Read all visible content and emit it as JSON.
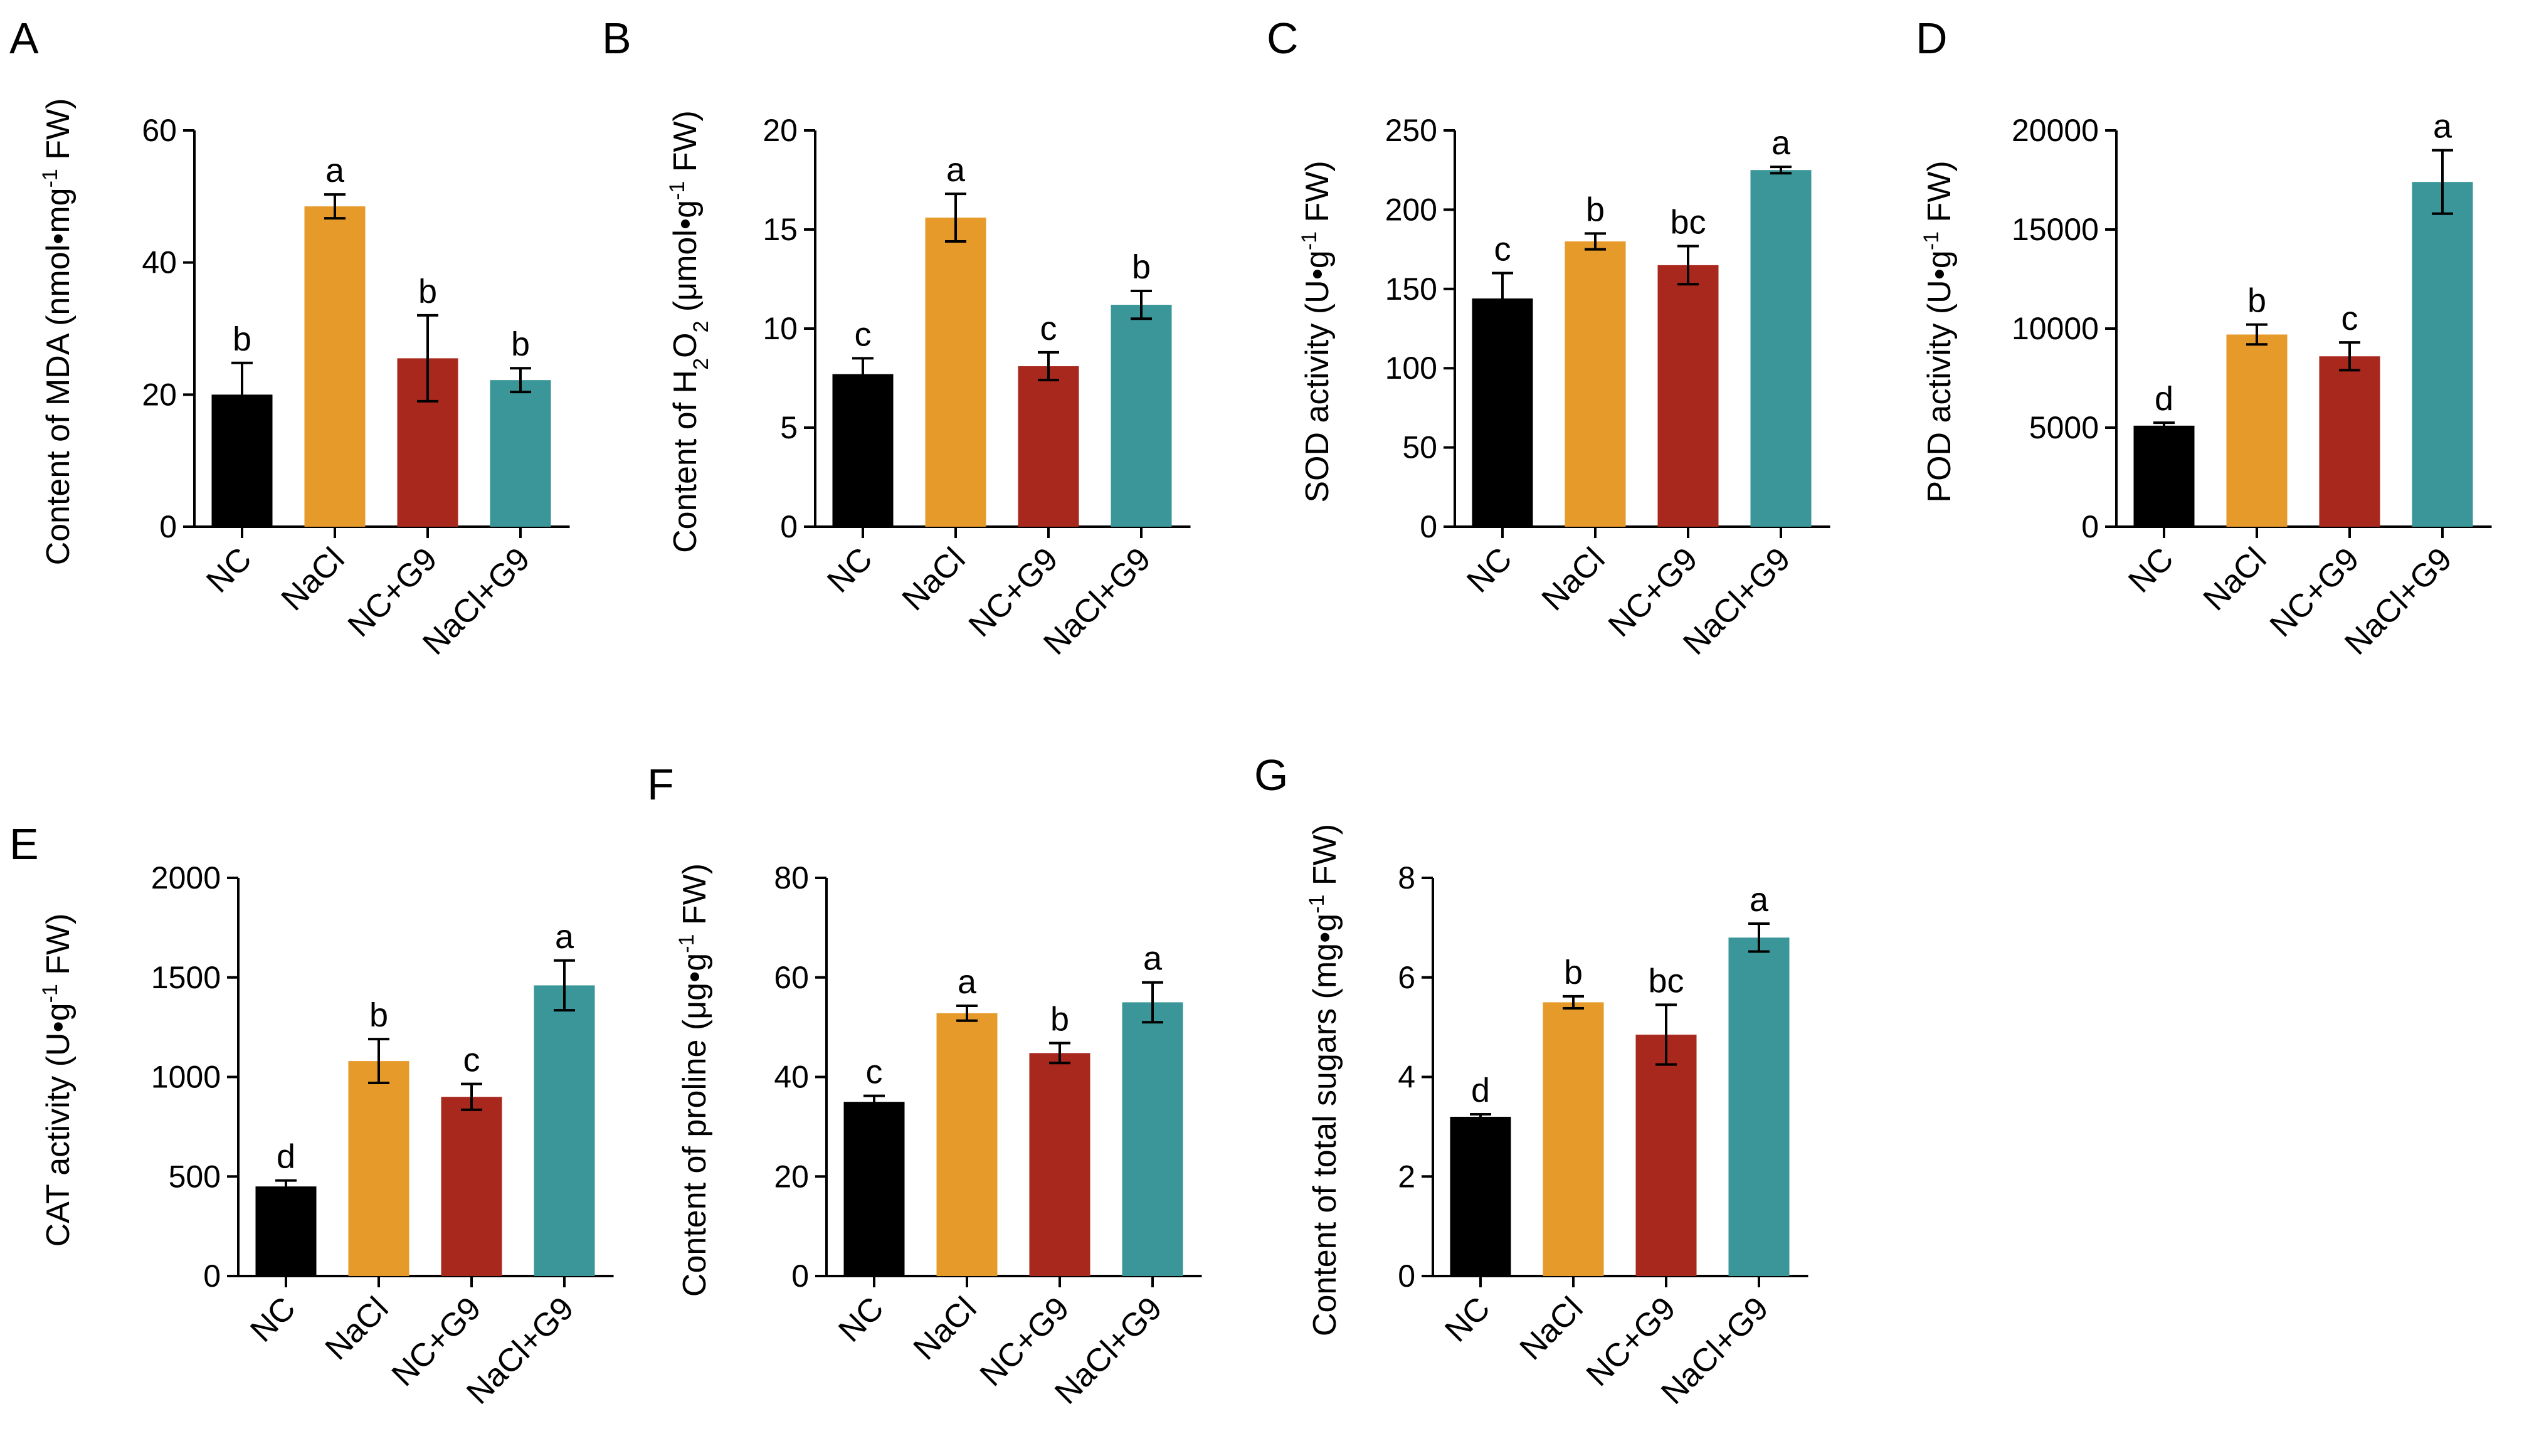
{
  "colors": {
    "NC": "#000000",
    "NaCl": "#E69A2A",
    "NC+G9": "#A8281E",
    "NaCl+G9": "#3A9698"
  },
  "chart_data": [
    {
      "panel": "A",
      "type": "bar",
      "categories": [
        "NC",
        "NaCl",
        "NC+G9",
        "NaCl+G9"
      ],
      "values": [
        20,
        48.5,
        25.5,
        22.2
      ],
      "errors": [
        4.8,
        1.8,
        6.5,
        1.8
      ],
      "significance": [
        "b",
        "a",
        "b",
        "b"
      ],
      "ylabel": {
        "pre": "Content of MDA (nmol•mg",
        "sup": "-1",
        "post": " FW)"
      },
      "ylim": [
        0,
        60
      ],
      "yticks": [
        0,
        20,
        40,
        60
      ]
    },
    {
      "panel": "B",
      "type": "bar",
      "categories": [
        "NC",
        "NaCl",
        "NC+G9",
        "NaCl+G9"
      ],
      "values": [
        7.7,
        15.6,
        8.1,
        11.2
      ],
      "errors": [
        0.8,
        1.2,
        0.7,
        0.7
      ],
      "significance": [
        "c",
        "a",
        "c",
        "b"
      ],
      "ylabel": {
        "pre": "Content of H",
        "sub1": "2",
        "mid": "O",
        "sub2": "2",
        "post": " (μmol•g",
        "sup": "-1",
        "post2": " FW)"
      },
      "ylim": [
        0,
        20
      ],
      "yticks": [
        0,
        5,
        10,
        15,
        20
      ]
    },
    {
      "panel": "C",
      "type": "bar",
      "categories": [
        "NC",
        "NaCl",
        "NC+G9",
        "NaCl+G9"
      ],
      "values": [
        144,
        180,
        165,
        225
      ],
      "errors": [
        16,
        5,
        12,
        2
      ],
      "significance": [
        "c",
        "b",
        "bc",
        "a"
      ],
      "ylabel": {
        "pre": "SOD activity (U•g",
        "sup": "-1",
        "post": " FW)"
      },
      "ylim": [
        0,
        250
      ],
      "yticks": [
        0,
        50,
        100,
        150,
        200,
        250
      ]
    },
    {
      "panel": "D",
      "type": "bar",
      "categories": [
        "NC",
        "NaCl",
        "NC+G9",
        "NaCl+G9"
      ],
      "values": [
        5100,
        9700,
        8600,
        17400
      ],
      "errors": [
        150,
        500,
        700,
        1600
      ],
      "significance": [
        "d",
        "b",
        "c",
        "a"
      ],
      "ylabel": {
        "pre": "POD activity (U•g",
        "sup": "-1",
        "post": " FW)"
      },
      "ylim": [
        0,
        20000
      ],
      "yticks": [
        0,
        5000,
        10000,
        15000,
        20000
      ]
    },
    {
      "panel": "E",
      "type": "bar",
      "categories": [
        "NC",
        "NaCl",
        "NC+G9",
        "NaCl+G9"
      ],
      "values": [
        450,
        1080,
        900,
        1460
      ],
      "errors": [
        30,
        110,
        65,
        125
      ],
      "significance": [
        "d",
        "b",
        "c",
        "a"
      ],
      "ylabel": {
        "pre": "CAT activity (U•g",
        "sup": "-1",
        "post": " FW)"
      },
      "ylim": [
        0,
        2000
      ],
      "yticks": [
        0,
        500,
        1000,
        1500,
        2000
      ]
    },
    {
      "panel": "F",
      "type": "bar",
      "categories": [
        "NC",
        "NaCl",
        "NC+G9",
        "NaCl+G9"
      ],
      "values": [
        35,
        52.8,
        44.8,
        55
      ],
      "errors": [
        1.2,
        1.5,
        2,
        4
      ],
      "significance": [
        "c",
        "a",
        "b",
        "a"
      ],
      "ylabel": {
        "pre": "Content of proline (μg•g",
        "sup": "-1",
        "post": " FW)"
      },
      "ylim": [
        0,
        80
      ],
      "yticks": [
        0,
        20,
        40,
        60,
        80
      ]
    },
    {
      "panel": "G",
      "type": "bar",
      "categories": [
        "NC",
        "NaCl",
        "NC+G9",
        "NaCl+G9"
      ],
      "values": [
        3.2,
        5.5,
        4.85,
        6.8
      ],
      "errors": [
        0.05,
        0.12,
        0.6,
        0.28
      ],
      "significance": [
        "d",
        "b",
        "bc",
        "a"
      ],
      "ylabel": {
        "pre": "Content of total sugars (mg•g",
        "sup": "-1",
        "post": " FW)"
      },
      "ylim": [
        0,
        8
      ],
      "yticks": [
        0,
        2,
        4,
        6,
        8
      ]
    }
  ]
}
